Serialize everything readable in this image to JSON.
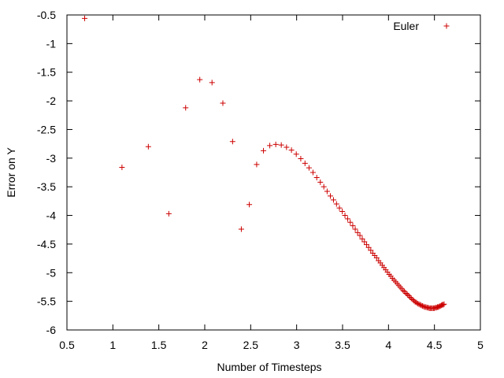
{
  "chart_data": {
    "type": "scatter",
    "xlabel": "Number of Timesteps",
    "ylabel": "Error on Y",
    "xlim": [
      0.5,
      5
    ],
    "ylim": [
      -6,
      -0.5
    ],
    "xticks": [
      0.5,
      1,
      1.5,
      2,
      2.5,
      3,
      3.5,
      4,
      4.5,
      5
    ],
    "xtick_labels": [
      "0.5",
      "1",
      "1.5",
      "2",
      "2.5",
      "3",
      "3.5",
      "4",
      "4.5",
      "5"
    ],
    "yticks": [
      -6,
      -5.5,
      -5,
      -4.5,
      -4,
      -3.5,
      -3,
      -2.5,
      -2,
      -1.5,
      -1,
      -0.5
    ],
    "ytick_labels": [
      "-6",
      "-5.5",
      "-5",
      "-4.5",
      "-4",
      "-3.5",
      "-3",
      "-2.5",
      "-2",
      "-1.5",
      "-1",
      "-0.5"
    ],
    "grid": false,
    "legend_position": "top-right",
    "series": [
      {
        "name": "Euler",
        "color": "#cc0000",
        "marker": "plus",
        "x": [
          0.693,
          1.099,
          1.386,
          1.609,
          1.792,
          1.946,
          2.079,
          2.197,
          2.303,
          2.398,
          2.485,
          2.565,
          2.639,
          2.708,
          2.773,
          2.833,
          2.89,
          2.944,
          2.996,
          3.045,
          3.091,
          3.135,
          3.178,
          3.219,
          3.258,
          3.296,
          3.332,
          3.367,
          3.401,
          3.434,
          3.466,
          3.497,
          3.526,
          3.555,
          3.584,
          3.611,
          3.638,
          3.664,
          3.689,
          3.714,
          3.738,
          3.761,
          3.784,
          3.807,
          3.829,
          3.85,
          3.871,
          3.892,
          3.912,
          3.932,
          3.951,
          3.97,
          3.989,
          4.007,
          4.025,
          4.043,
          4.06,
          4.078,
          4.094,
          4.111,
          4.127,
          4.143,
          4.159,
          4.174,
          4.19,
          4.205,
          4.22,
          4.234,
          4.248,
          4.263,
          4.277,
          4.29,
          4.304,
          4.317,
          4.331,
          4.344,
          4.357,
          4.369,
          4.382,
          4.394,
          4.407,
          4.419,
          4.431,
          4.443,
          4.454,
          4.466,
          4.477,
          4.489,
          4.5,
          4.511,
          4.522,
          4.533,
          4.543,
          4.554,
          4.564,
          4.575,
          4.585,
          4.595,
          4.605
        ],
        "y": [
          -0.56,
          -3.16,
          -2.8,
          -3.97,
          -2.12,
          -1.63,
          -1.68,
          -2.04,
          -2.71,
          -4.24,
          -3.81,
          -3.11,
          -2.87,
          -2.78,
          -2.76,
          -2.77,
          -2.81,
          -2.86,
          -2.93,
          -3.01,
          -3.09,
          -3.17,
          -3.25,
          -3.34,
          -3.42,
          -3.5,
          -3.58,
          -3.66,
          -3.73,
          -3.8,
          -3.87,
          -3.93,
          -4.0,
          -4.06,
          -4.12,
          -4.18,
          -4.24,
          -4.3,
          -4.35,
          -4.41,
          -4.46,
          -4.51,
          -4.56,
          -4.61,
          -4.66,
          -4.7,
          -4.74,
          -4.79,
          -4.83,
          -4.87,
          -4.91,
          -4.95,
          -4.99,
          -5.03,
          -5.06,
          -5.1,
          -5.13,
          -5.16,
          -5.19,
          -5.22,
          -5.25,
          -5.28,
          -5.31,
          -5.33,
          -5.36,
          -5.38,
          -5.4,
          -5.43,
          -5.45,
          -5.47,
          -5.49,
          -5.51,
          -5.52,
          -5.54,
          -5.55,
          -5.56,
          -5.57,
          -5.58,
          -5.59,
          -5.6,
          -5.6,
          -5.61,
          -5.61,
          -5.62,
          -5.62,
          -5.62,
          -5.62,
          -5.62,
          -5.62,
          -5.61,
          -5.61,
          -5.6,
          -5.6,
          -5.59,
          -5.58,
          -5.57,
          -5.56,
          -5.56,
          -5.55
        ]
      }
    ]
  }
}
